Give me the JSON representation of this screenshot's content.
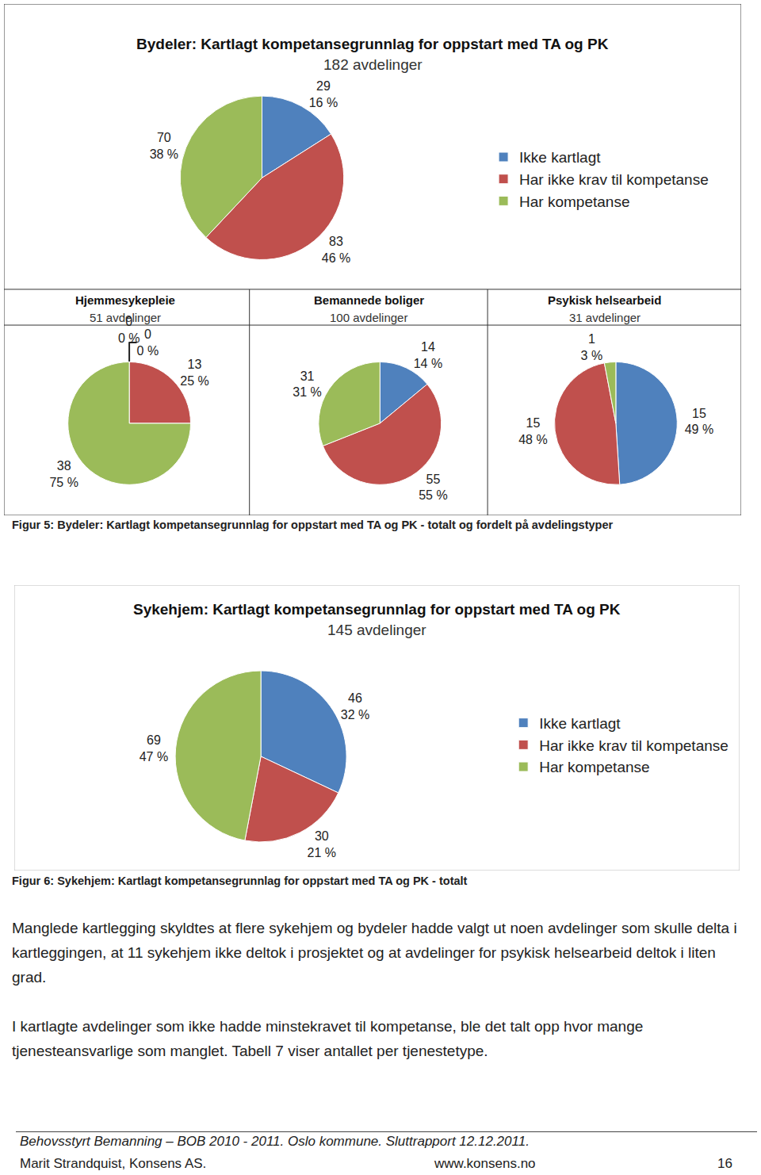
{
  "chart_data": [
    {
      "type": "pie",
      "title": "Bydeler: Kartlagt kompetansegrunnlag for oppstart med TA og PK",
      "subtitle": "182 avdelinger",
      "labels": [
        "Ikke kartlagt",
        "Har ikke krav til kompetanse",
        "Har kompetanse"
      ],
      "colors": [
        "#4f81bd",
        "#c0504d",
        "#9bbb59"
      ],
      "values": [
        16,
        46,
        38
      ],
      "value_labels": [
        "16 %",
        "46 %",
        "38 %"
      ],
      "counts": [
        29,
        83,
        70
      ],
      "data_labels": true,
      "legend": "right"
    },
    {
      "type": "pie",
      "title": "Hjemmesykepleie",
      "subtitle": "51 avdelinger",
      "labels": [
        "Ikke kartlagt",
        "Har ikke krav til kompetanse",
        "Har kompetanse"
      ],
      "colors": [
        "#4f81bd",
        "#c0504d",
        "#9bbb59"
      ],
      "values": [
        0,
        25,
        75
      ],
      "value_labels": [
        "0 %",
        "25 %",
        "75 %"
      ],
      "counts": [
        0,
        13,
        38
      ],
      "data_labels": true
    },
    {
      "type": "pie",
      "title": "Bemannede boliger",
      "subtitle": "100 avdelinger",
      "labels": [
        "Ikke kartlagt",
        "Har ikke krav til kompetanse",
        "Har kompetanse"
      ],
      "colors": [
        "#4f81bd",
        "#c0504d",
        "#9bbb59"
      ],
      "values": [
        14,
        55,
        31
      ],
      "value_labels": [
        "14 %",
        "55 %",
        "31 %"
      ],
      "counts": [
        14,
        55,
        31
      ],
      "data_labels": true
    },
    {
      "type": "pie",
      "title": "Psykisk helsearbeid",
      "subtitle": "31 avdelinger",
      "labels": [
        "Ikke kartlagt",
        "Har ikke krav til kompetanse",
        "Har kompetanse"
      ],
      "colors": [
        "#4f81bd",
        "#c0504d",
        "#9bbb59"
      ],
      "values": [
        49,
        48,
        3
      ],
      "value_labels": [
        "49 %",
        "48 %",
        "3 %"
      ],
      "counts": [
        15,
        15,
        1
      ],
      "data_labels": true
    },
    {
      "type": "pie",
      "title": "Sykehjem: Kartlagt kompetansegrunnlag for oppstart med TA og PK",
      "subtitle": "145 avdelinger",
      "labels": [
        "Ikke kartlagt",
        "Har ikke krav til kompetanse",
        "Har kompetanse"
      ],
      "colors": [
        "#4f81bd",
        "#c0504d",
        "#9bbb59"
      ],
      "values": [
        32,
        21,
        47
      ],
      "value_labels": [
        "32 %",
        "21 %",
        "47 %"
      ],
      "counts": [
        46,
        30,
        69
      ],
      "data_labels": true,
      "legend": "right"
    }
  ],
  "captions": [
    "Figur 5: Bydeler: Kartlagt kompetansegrunnlag for oppstart med TA og PK - totalt og fordelt på avdelingstyper",
    "Figur 6: Sykehjem: Kartlagt kompetansegrunnlag for oppstart med TA og PK - totalt"
  ],
  "paragraphs": [
    "Manglede kartlegging skyldtes at flere sykehjem og bydeler hadde valgt ut noen avdelinger som skulle delta i kartleggingen, at 11 sykehjem ikke deltok i prosjektet og at avdelinger for psykisk helsearbeid deltok i liten grad.",
    "I kartlagte avdelinger som ikke hadde minstekravet til kompetanse, ble det talt opp hvor mange tjenesteansvarlige som manglet. Tabell 7 viser antallet per tjenestetype."
  ],
  "footer": {
    "report": "Behovsstyrt Bemanning – BOB 2010 - 2011. Oslo kommune. Sluttrapport 12.12.2011.",
    "author": "Marit Strandquist, Konsens AS.",
    "website": "www.konsens.no",
    "page": 16
  }
}
